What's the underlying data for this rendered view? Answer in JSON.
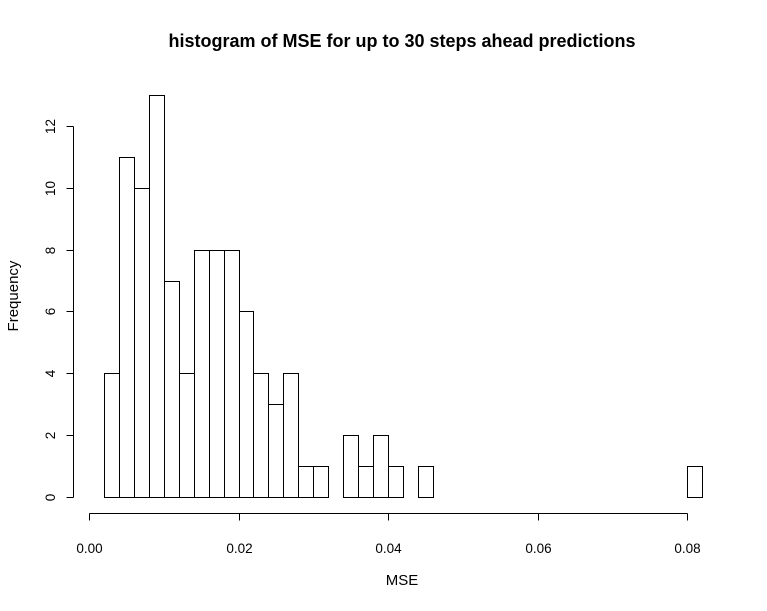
{
  "chart_data": {
    "type": "bar",
    "title": "histogram of MSE for up to 30 steps ahead predictions",
    "xlabel": "MSE",
    "ylabel": "Frequency",
    "bin_width": 0.002,
    "x_start": 0.002,
    "frequencies": [
      4,
      11,
      10,
      13,
      7,
      4,
      8,
      8,
      8,
      6,
      4,
      3,
      4,
      1,
      1,
      0,
      2,
      1,
      2,
      1,
      0,
      1,
      0,
      0,
      0,
      0,
      0,
      0,
      0,
      0,
      0,
      0,
      0,
      0,
      0,
      0,
      0,
      0,
      0,
      1
    ],
    "xlim": [
      0.0,
      0.08
    ],
    "ylim": [
      0,
      13
    ],
    "x_ticks": [
      0.0,
      0.02,
      0.04,
      0.06,
      0.08
    ],
    "x_tick_labels": [
      "0.00",
      "0.02",
      "0.04",
      "0.06",
      "0.08"
    ],
    "y_ticks": [
      0,
      2,
      4,
      6,
      8,
      10,
      12
    ],
    "y_tick_labels": [
      "0",
      "2",
      "4",
      "6",
      "8",
      "10",
      "12"
    ],
    "grid": false
  }
}
